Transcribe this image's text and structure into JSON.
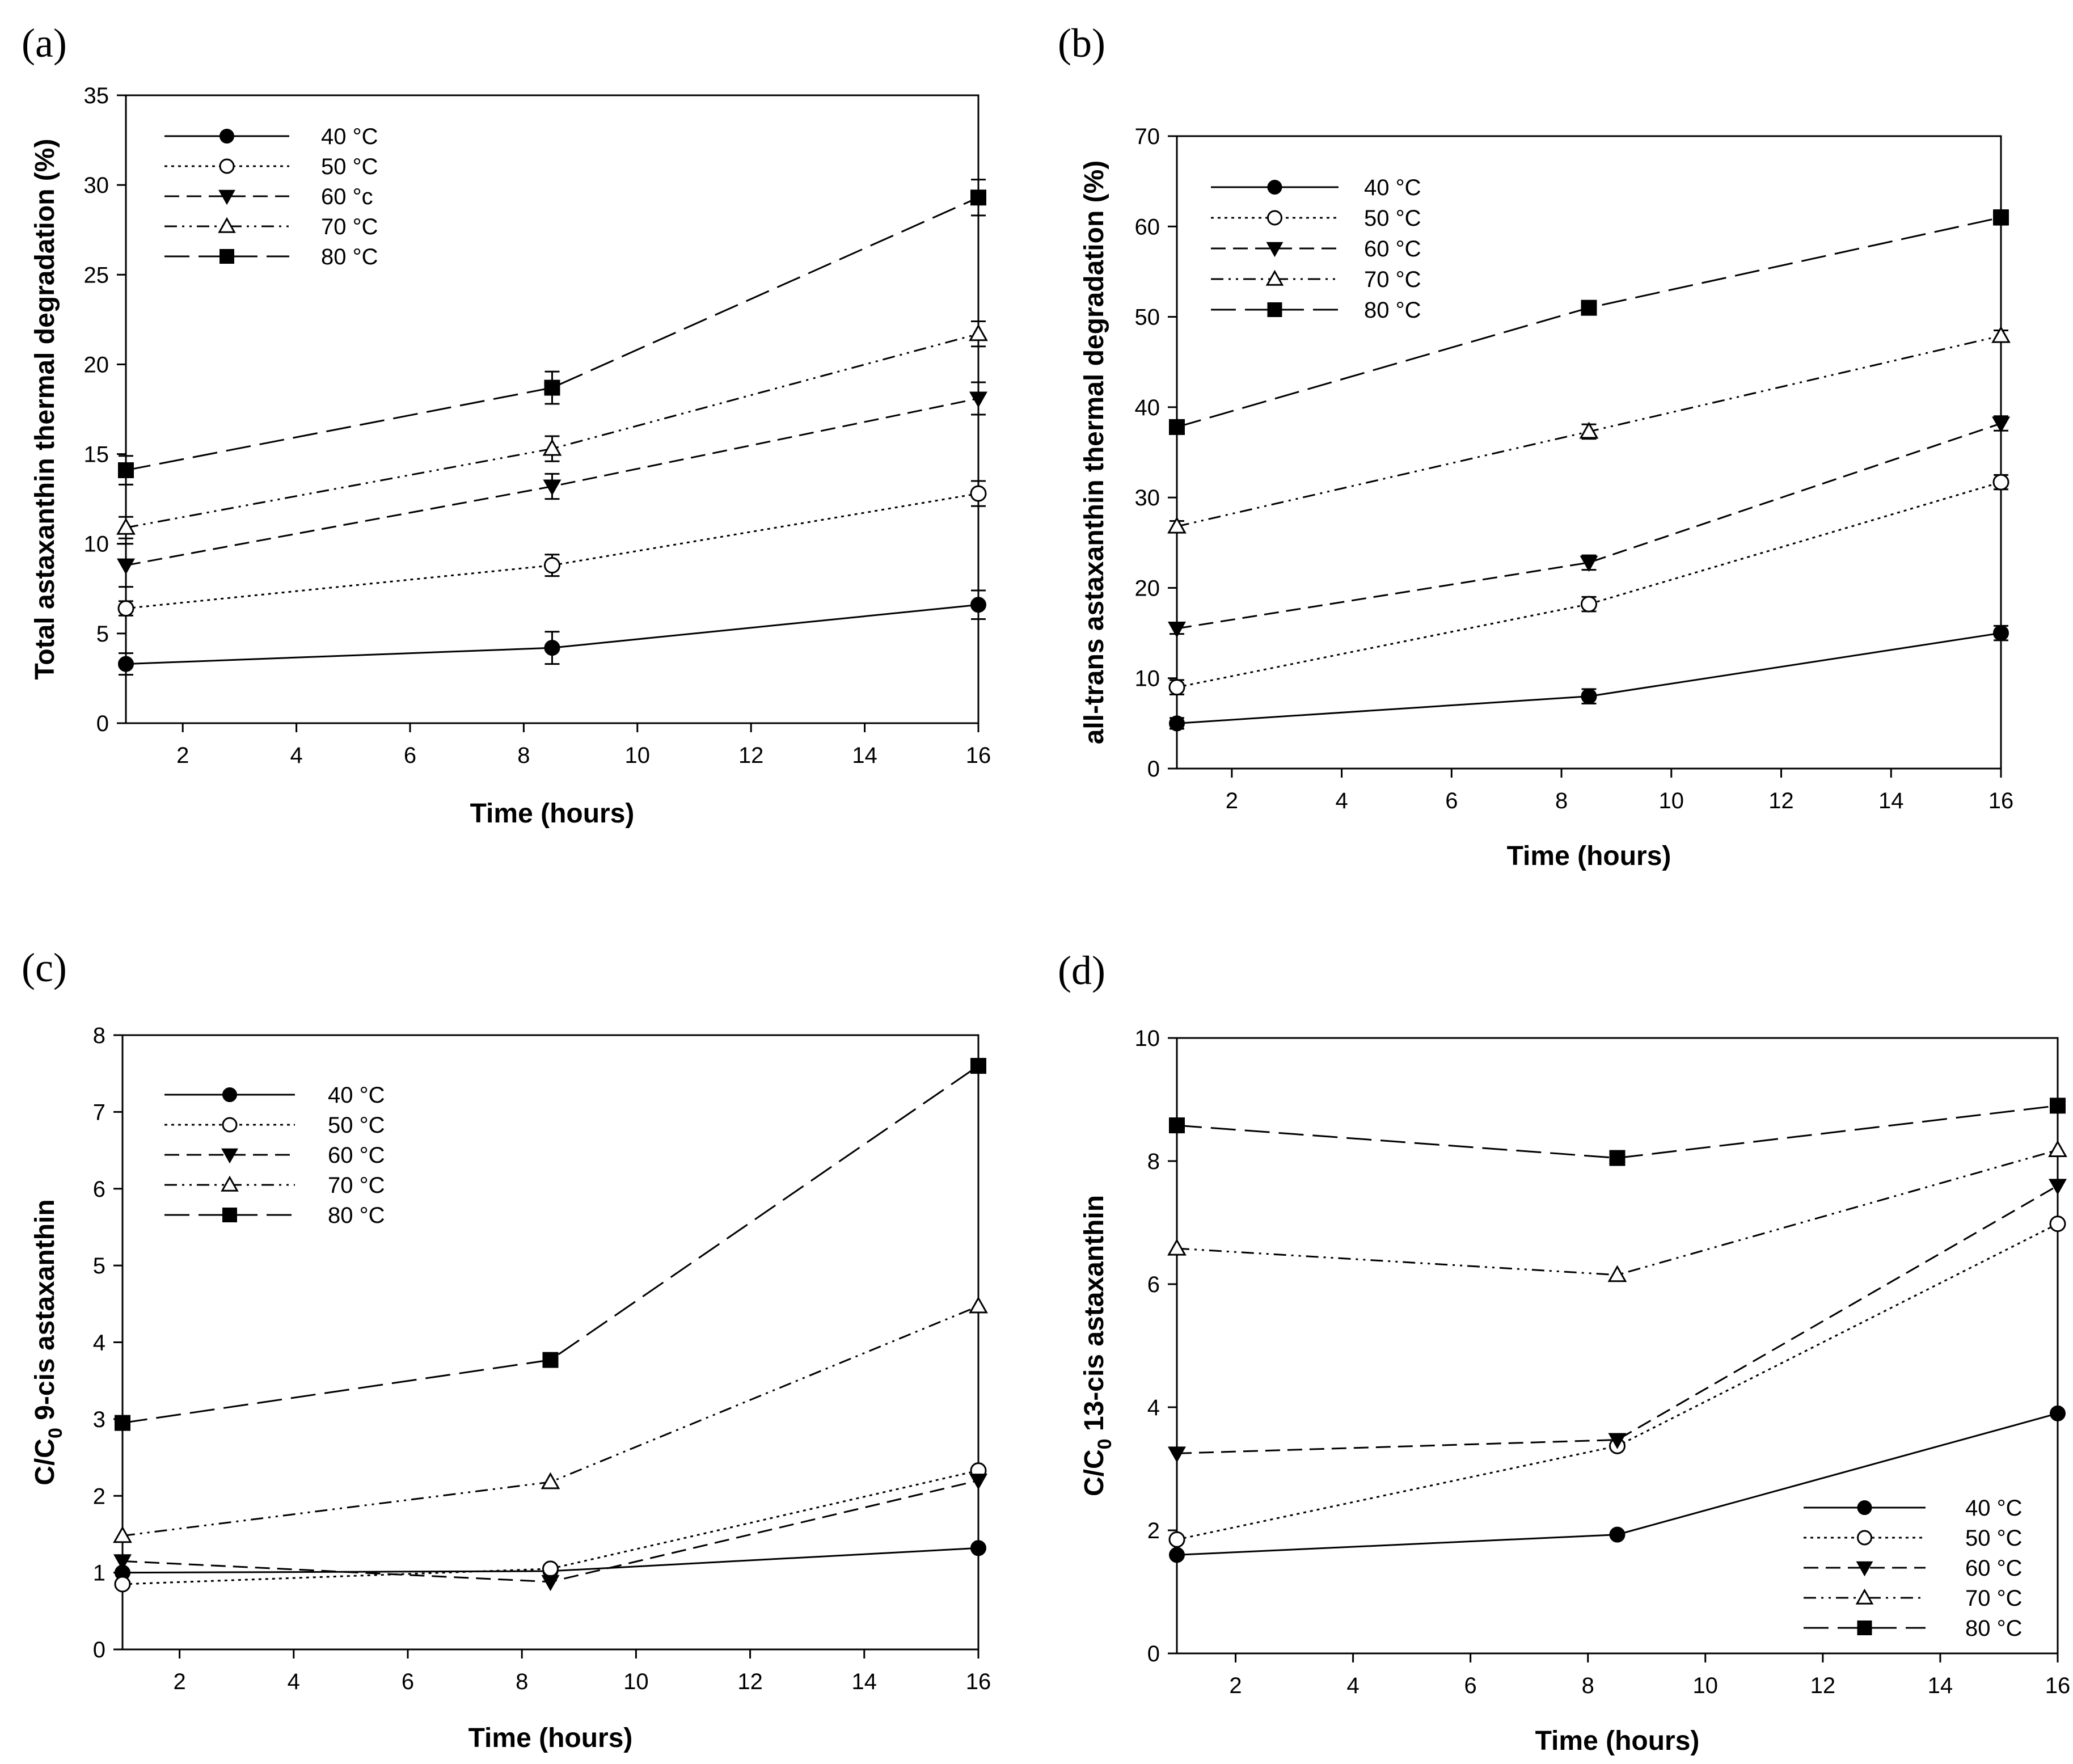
{
  "chart_data": [
    {
      "type": "line",
      "panel": "(a)",
      "xlabel": "Time (hours)",
      "ylabel": "Total astaxanthin thermal degradation (%)",
      "ylabel_sub": "",
      "ylabel_post": "",
      "xlim": [
        1,
        16
      ],
      "ylim": [
        0,
        35
      ],
      "xticks": [
        2,
        4,
        6,
        8,
        10,
        12,
        14,
        16
      ],
      "yticks": [
        0,
        5,
        10,
        15,
        20,
        25,
        30,
        35
      ],
      "legend_position": "top-left",
      "x": [
        1,
        8.5,
        16
      ],
      "series": [
        {
          "name": "40 °C",
          "values": [
            3.3,
            4.2,
            6.6
          ],
          "errors": [
            0.6,
            0.9,
            0.8
          ]
        },
        {
          "name": "50 °C",
          "values": [
            6.4,
            8.8,
            12.8
          ],
          "errors": [
            0.4,
            0.6,
            0.7
          ]
        },
        {
          "name": "60 °c",
          "values": [
            8.8,
            13.2,
            18.1
          ],
          "errors": [
            1.2,
            0.7,
            0.9
          ]
        },
        {
          "name": "70 °C",
          "values": [
            10.9,
            15.3,
            21.7
          ],
          "errors": [
            0.6,
            0.7,
            0.7
          ]
        },
        {
          "name": "80 °C",
          "values": [
            14.1,
            18.7,
            29.3
          ],
          "errors": [
            0.8,
            0.9,
            1.0
          ]
        }
      ]
    },
    {
      "type": "line",
      "panel": "(b)",
      "xlabel": "Time (hours)",
      "ylabel": "all-trans astaxanthin thermal degradation (%)",
      "ylabel_sub": "",
      "ylabel_post": "",
      "xlim": [
        1,
        16
      ],
      "ylim": [
        0,
        70
      ],
      "xticks": [
        2,
        4,
        6,
        8,
        10,
        12,
        14,
        16
      ],
      "yticks": [
        0,
        10,
        20,
        30,
        40,
        50,
        60,
        70
      ],
      "legend_position": "top-left",
      "x": [
        1,
        8.5,
        16
      ],
      "series": [
        {
          "name": "40 °C",
          "values": [
            5.0,
            8.0,
            15.0
          ],
          "errors": [
            0.6,
            0.8,
            0.8
          ]
        },
        {
          "name": "50 °C",
          "values": [
            9.0,
            18.2,
            31.7
          ],
          "errors": [
            0.8,
            0.8,
            0.8
          ]
        },
        {
          "name": "60 °C",
          "values": [
            15.5,
            22.8,
            38.2
          ],
          "errors": [
            0.6,
            0.8,
            0.8
          ]
        },
        {
          "name": "70 °C",
          "values": [
            26.8,
            37.3,
            47.9
          ],
          "errors": [
            0.6,
            0.8,
            0.6
          ]
        },
        {
          "name": "80 °C",
          "values": [
            37.8,
            51.0,
            61.0
          ],
          "errors": [
            0.6,
            0.6,
            0.8
          ]
        }
      ]
    },
    {
      "type": "line",
      "panel": "(c)",
      "xlabel": "Time (hours)",
      "ylabel": "C/C",
      "ylabel_sub": "0",
      "ylabel_post": " 9-cis astaxanthin",
      "xlim": [
        1,
        16
      ],
      "ylim": [
        0,
        8
      ],
      "xticks": [
        2,
        4,
        6,
        8,
        10,
        12,
        14,
        16
      ],
      "yticks": [
        0,
        1,
        2,
        3,
        4,
        5,
        6,
        7,
        8
      ],
      "legend_position": "top-left",
      "x": [
        1,
        8.5,
        16
      ],
      "series": [
        {
          "name": "40 °C",
          "values": [
            1.0,
            1.02,
            1.32
          ]
        },
        {
          "name": "50 °C",
          "values": [
            0.85,
            1.05,
            2.33
          ]
        },
        {
          "name": "60 °C",
          "values": [
            1.15,
            0.88,
            2.2
          ]
        },
        {
          "name": "70 °C",
          "values": [
            1.48,
            2.18,
            4.47
          ]
        },
        {
          "name": "80 °C",
          "values": [
            2.95,
            3.77,
            7.6
          ]
        }
      ]
    },
    {
      "type": "line",
      "panel": "(d)",
      "xlabel": "Time (hours)",
      "ylabel": "C/C",
      "ylabel_sub": "0",
      "ylabel_post": " 13-cis astaxanthin",
      "xlim": [
        1,
        16
      ],
      "ylim": [
        0,
        10
      ],
      "xticks": [
        2,
        4,
        6,
        8,
        10,
        12,
        14,
        16
      ],
      "yticks": [
        0,
        2,
        4,
        6,
        8,
        10
      ],
      "legend_position": "bottom-right",
      "x": [
        1,
        8.5,
        16
      ],
      "series": [
        {
          "name": "40 °C",
          "values": [
            1.6,
            1.93,
            3.9
          ]
        },
        {
          "name": "50 °C",
          "values": [
            1.85,
            3.37,
            6.98
          ]
        },
        {
          "name": "60 °C",
          "values": [
            3.25,
            3.47,
            7.6
          ]
        },
        {
          "name": "70 °C",
          "values": [
            6.58,
            6.15,
            8.18
          ]
        },
        {
          "name": "80 °C",
          "values": [
            8.58,
            8.05,
            8.9
          ]
        }
      ]
    }
  ]
}
